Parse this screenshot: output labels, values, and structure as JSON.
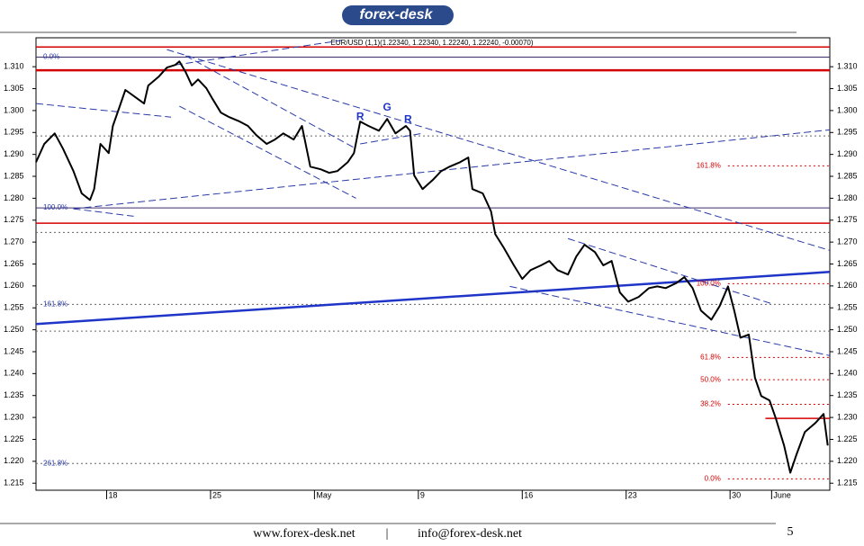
{
  "header": {
    "logo": "forex-desk"
  },
  "chart_data": {
    "type": "line",
    "title": "EUR/USD (1,1)(1.22340, 1.22340, 1.22240, 1.22240, -0.00070)",
    "color": "#000000",
    "xlim": [
      -3.4,
      34.8
    ],
    "ylim": [
      1.2134,
      1.3166
    ],
    "xticks": [
      {
        "value": 0,
        "label": "18"
      },
      {
        "value": 5,
        "label": "25"
      },
      {
        "value": 10,
        "label": "May"
      },
      {
        "value": 15,
        "label": "9"
      },
      {
        "value": 20,
        "label": "16"
      },
      {
        "value": 25,
        "label": "23"
      },
      {
        "value": 30,
        "label": "30"
      },
      {
        "value": 32,
        "label": "June"
      }
    ],
    "yticks": [
      1.215,
      {
        "value": 1.22,
        "label": "1.220"
      },
      1.225,
      {
        "value": 1.23,
        "label": "1.230"
      },
      1.235,
      {
        "value": 1.24,
        "label": "1.240"
      },
      1.245,
      {
        "value": 1.25,
        "label": "1.250"
      },
      1.255,
      {
        "value": 1.26,
        "label": "1.260"
      },
      1.265,
      {
        "value": 1.27,
        "label": "1.270"
      },
      1.275,
      {
        "value": 1.28,
        "label": "1.280"
      },
      1.285,
      {
        "value": 1.29,
        "label": "1.290"
      },
      1.295,
      {
        "value": 1.3,
        "label": "1.300"
      },
      1.305,
      {
        "value": 1.31,
        "label": "1.310"
      }
    ],
    "x": [
      -3.4,
      -3.0,
      -2.5,
      -2.1,
      -1.6,
      -1.2,
      -0.8,
      -0.6,
      -0.3,
      0.1,
      0.3,
      0.6,
      0.9,
      1.4,
      1.8,
      2.0,
      2.5,
      2.9,
      3.3,
      3.5,
      3.8,
      4.1,
      4.4,
      4.8,
      5.1,
      5.5,
      5.9,
      6.4,
      6.8,
      7.2,
      7.7,
      8.1,
      8.5,
      9.0,
      9.4,
      9.8,
      10.3,
      10.7,
      11.1,
      11.6,
      11.9,
      12.2,
      12.6,
      13.1,
      13.5,
      13.9,
      14.4,
      14.6,
      14.8,
      15.2,
      15.7,
      16.1,
      16.5,
      17.0,
      17.4,
      17.6,
      18.1,
      18.5,
      18.7,
      19.1,
      19.6,
      20.0,
      20.4,
      20.9,
      21.3,
      21.7,
      22.2,
      22.6,
      23.0,
      23.5,
      23.9,
      24.3,
      24.7,
      25.1,
      25.6,
      26.1,
      26.5,
      26.9,
      27.4,
      27.8,
      28.2,
      28.6,
      29.1,
      29.5,
      29.9,
      30.2,
      30.5,
      30.9,
      31.2,
      31.5,
      31.9,
      32.2,
      32.6,
      32.9,
      33.2,
      33.6,
      34.1,
      34.5,
      34.7
    ],
    "values": [
      1.2882,
      1.2924,
      1.2948,
      1.2913,
      1.2862,
      1.2811,
      1.2796,
      1.2821,
      1.2924,
      1.2903,
      1.2965,
      1.3006,
      1.3047,
      1.303,
      1.3016,
      1.3057,
      1.3077,
      1.3098,
      1.3104,
      1.3112,
      1.3088,
      1.3057,
      1.3071,
      1.3051,
      1.3026,
      1.2995,
      1.2985,
      1.2975,
      1.2965,
      1.2944,
      1.2924,
      1.2934,
      1.2948,
      1.2934,
      1.2965,
      1.2872,
      1.2866,
      1.2858,
      1.2862,
      1.2882,
      1.2903,
      1.2975,
      1.2965,
      1.2954,
      1.2981,
      1.2948,
      1.2965,
      1.2954,
      1.2852,
      1.2821,
      1.2842,
      1.2862,
      1.2872,
      1.2882,
      1.2893,
      1.2821,
      1.2811,
      1.277,
      1.2718,
      1.2688,
      1.2647,
      1.2616,
      1.2636,
      1.2647,
      1.2657,
      1.2636,
      1.2626,
      1.2667,
      1.2694,
      1.2677,
      1.2647,
      1.2657,
      1.2585,
      1.2564,
      1.2575,
      1.2595,
      1.2599,
      1.2595,
      1.2606,
      1.262,
      1.2595,
      1.2544,
      1.2523,
      1.2554,
      1.2599,
      1.2544,
      1.2482,
      1.2489,
      1.239,
      1.2349,
      1.2339,
      1.2298,
      1.2236,
      1.2174,
      1.2216,
      1.2267,
      1.2287,
      1.2308,
      1.2236
    ],
    "hlines": [
      {
        "y": 1.3145,
        "color": "#d40000",
        "width": 1.5,
        "dash": false
      },
      {
        "y": 1.3122,
        "color": "#3b2b6b",
        "width": 1,
        "dash": false
      },
      {
        "y": 1.3092,
        "color": "#d40000",
        "width": 2.5,
        "dash": false
      },
      {
        "y": 1.2942,
        "color": "#666666",
        "width": 1,
        "dash": true
      },
      {
        "y": 1.2778,
        "color": "#3b2b6b",
        "width": 1,
        "dash": false
      },
      {
        "y": 1.2743,
        "color": "#d40000",
        "width": 1.5,
        "dash": false
      },
      {
        "y": 1.2722,
        "color": "#666666",
        "width": 1,
        "dash": true
      },
      {
        "y": 1.2558,
        "color": "#666666",
        "width": 1,
        "dash": true
      },
      {
        "y": 1.2497,
        "color": "#666666",
        "width": 1,
        "dash": true
      },
      {
        "y": 1.2195,
        "color": "#666666",
        "width": 1,
        "dash": true
      }
    ],
    "left_levels": [
      {
        "label": "0.0%",
        "y": 1.3122
      },
      {
        "label": "100.0%",
        "y": 1.2778
      },
      {
        "label": "161.8%",
        "y": 1.2558
      },
      {
        "label": "261.8%",
        "y": 1.2195
      }
    ],
    "right_levels_from": 29.9,
    "right_levels": [
      {
        "label": "161.8%",
        "y": 1.2874
      },
      {
        "label": "100.0%",
        "y": 1.2605
      },
      {
        "label": "61.8%",
        "y": 1.2437
      },
      {
        "label": "50.0%",
        "y": 1.2386
      },
      {
        "label": "38.2%",
        "y": 1.233
      },
      {
        "label": "0.0%",
        "y": 1.216
      }
    ],
    "trendlines": [
      {
        "x": [
          -3.4,
          34.8
        ],
        "y": [
          1.2513,
          1.2632
        ],
        "color": "#1f35c8",
        "width": 2.5,
        "dash": false
      },
      {
        "x": [
          -1.6,
          34.8
        ],
        "y": [
          1.2776,
          1.2956
        ],
        "color": "#2a3aa8",
        "width": 1,
        "dash": true
      },
      {
        "x": [
          -3.4,
          3.1
        ],
        "y": [
          1.3016,
          1.2985
        ],
        "color": "#2a3aa8",
        "width": 1,
        "dash": true
      },
      {
        "x": [
          3.3,
          11.3
        ],
        "y": [
          1.3104,
          1.316
        ],
        "color": "#2a3aa8",
        "width": 1,
        "dash": true
      },
      {
        "x": [
          2.9,
          34.8
        ],
        "y": [
          1.3139,
          1.2681
        ],
        "color": "#2a3aa8",
        "width": 1,
        "dash": true
      },
      {
        "x": [
          3.5,
          12.0
        ],
        "y": [
          1.301,
          1.28
        ],
        "color": "#2a3aa8",
        "width": 1,
        "dash": true
      },
      {
        "x": [
          3.8,
          12.0
        ],
        "y": [
          1.3125,
          1.2913
        ],
        "color": "#2a3aa8",
        "width": 1,
        "dash": true
      },
      {
        "x": [
          19.4,
          34.8
        ],
        "y": [
          1.2599,
          1.2441
        ],
        "color": "#2a3aa8",
        "width": 1,
        "dash": true
      },
      {
        "x": [
          22.2,
          32.1
        ],
        "y": [
          1.2708,
          1.2558
        ],
        "color": "#2a3aa8",
        "width": 1,
        "dash": true
      },
      {
        "x": [
          12.2,
          15.2
        ],
        "y": [
          1.2924,
          1.2948
        ],
        "color": "#2a3aa8",
        "width": 1,
        "dash": true
      },
      {
        "x": [
          -1.6,
          1.3
        ],
        "y": [
          1.2776,
          1.2759
        ],
        "color": "#2a3aa8",
        "width": 1,
        "dash": true
      },
      {
        "x": [
          31.7,
          34.8
        ],
        "y": [
          1.2298,
          1.2298
        ],
        "color": "#d40000",
        "width": 1.5,
        "dash": false
      }
    ],
    "annotations": [
      {
        "text": "R",
        "x": 12.2,
        "y": 1.2985
      },
      {
        "text": "G",
        "x": 13.5,
        "y": 1.3006
      },
      {
        "text": "R",
        "x": 14.5,
        "y": 1.2979
      }
    ]
  },
  "footer": {
    "website": "www.forex-desk.net",
    "separator": "|",
    "email": "info@forex-desk.net",
    "page": "5"
  }
}
